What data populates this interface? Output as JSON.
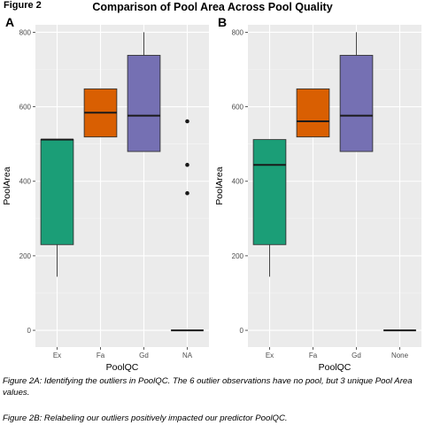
{
  "figure_label": "Figure 2",
  "title": "Comparison of Pool Area Across Pool Quality",
  "captions": [
    "Figure 2A: Identifying the outliers in PoolQC. The 6 outlier observations have no pool, but 3 unique Pool Area values.",
    "Figure 2B: Relabeling our outliers positively impacted our predictor PoolQC."
  ],
  "chart_data": [
    {
      "panel": "A",
      "type": "box",
      "xlabel": "PoolQC",
      "ylabel": "PoolArea",
      "categories": [
        "Ex",
        "Fa",
        "Gd",
        "NA"
      ],
      "colors": [
        "#1b9e77",
        "#d95f02",
        "#7570b3",
        "#7570b3"
      ],
      "ylim": [
        -45,
        820
      ],
      "yticks": [
        0,
        200,
        400,
        600,
        800
      ],
      "grid": true,
      "boxes": [
        {
          "category": "Ex",
          "whisker_low": 144,
          "q1": 230,
          "median": 512,
          "q3": 512,
          "whisker_high": 512,
          "outliers": []
        },
        {
          "category": "Fa",
          "whisker_low": 519,
          "q1": 519,
          "median": 584,
          "q3": 648,
          "whisker_high": 648,
          "outliers": []
        },
        {
          "category": "Gd",
          "whisker_low": 480,
          "q1": 480,
          "median": 576,
          "q3": 738,
          "whisker_high": 800,
          "outliers": []
        },
        {
          "category": "NA",
          "whisker_low": 0,
          "q1": 0,
          "median": 0,
          "q3": 0,
          "whisker_high": 0,
          "outliers": [
            561,
            444,
            368
          ]
        }
      ]
    },
    {
      "panel": "B",
      "type": "box",
      "xlabel": "PoolQC",
      "ylabel": "PoolArea",
      "categories": [
        "Ex",
        "Fa",
        "Gd",
        "None"
      ],
      "colors": [
        "#1b9e77",
        "#d95f02",
        "#7570b3",
        "#7570b3"
      ],
      "ylim": [
        -45,
        820
      ],
      "yticks": [
        0,
        200,
        400,
        600,
        800
      ],
      "grid": true,
      "boxes": [
        {
          "category": "Ex",
          "whisker_low": 144,
          "q1": 230,
          "median": 444,
          "q3": 512,
          "whisker_high": 512,
          "outliers": []
        },
        {
          "category": "Fa",
          "whisker_low": 519,
          "q1": 519,
          "median": 561,
          "q3": 648,
          "whisker_high": 648,
          "outliers": []
        },
        {
          "category": "Gd",
          "whisker_low": 480,
          "q1": 480,
          "median": 576,
          "q3": 738,
          "whisker_high": 800,
          "outliers": []
        },
        {
          "category": "None",
          "whisker_low": 0,
          "q1": 0,
          "median": 0,
          "q3": 0,
          "whisker_high": 0,
          "outliers": []
        }
      ]
    }
  ]
}
